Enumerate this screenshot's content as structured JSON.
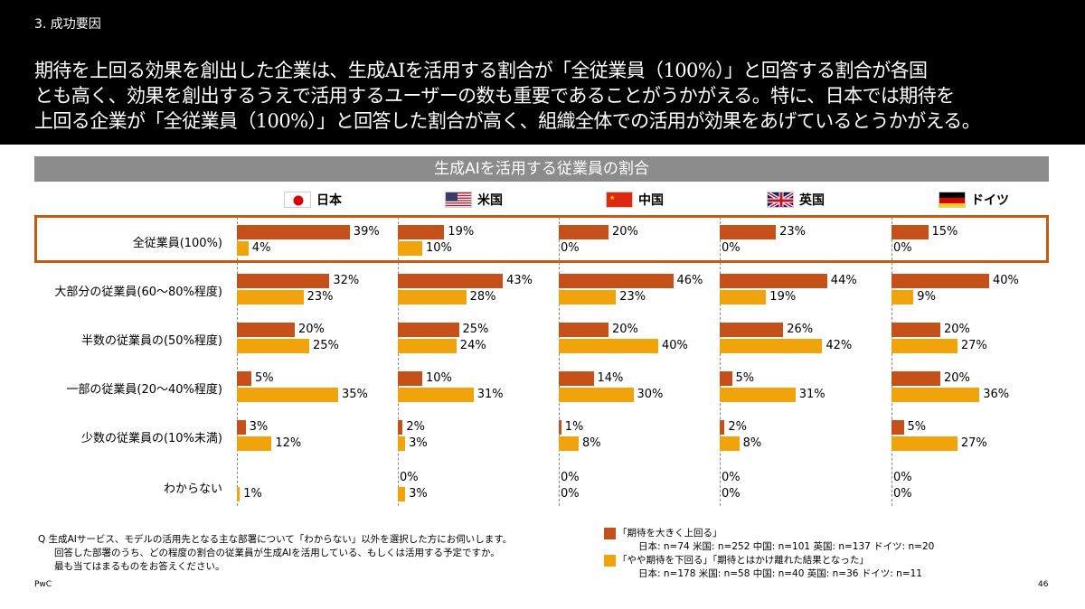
{
  "section": "3. 成功要因",
  "headline": [
    "期待を上回る効果を創出した企業は、生成AIを活用する割合が「全従業員（100%）」と回答する割合が各国",
    "とも高く、効果を創出するうえで活用するユーザーの数も重要であることがうかがえる。特に、日本では期待を",
    "上回る企業が「全従業員（100%）」と回答した割合が高く、組織全体での活用が効果をあげているとうかがえる。"
  ],
  "chart_data": {
    "type": "bar",
    "orientation": "horizontal",
    "title": "生成AIを活用する従業員の割合",
    "categories": [
      "全従業員(100%)",
      "大部分の従業員(60～80%程度)",
      "半数の従業員の(50%程度)",
      "一部の従業員(20～40%程度)",
      "少数の従業員の(10%未満)",
      "わからない"
    ],
    "unit": "%",
    "panels": [
      {
        "country": "日本",
        "flag": "japan-flag",
        "series": [
          {
            "name": "「期待を大きく上回る」",
            "values": [
              39,
              32,
              20,
              5,
              3,
              null
            ]
          },
          {
            "name": "「やや期待を下回る」「期待とはかけ離れた結果となった」",
            "values": [
              4,
              23,
              25,
              35,
              12,
              1
            ]
          }
        ]
      },
      {
        "country": "米国",
        "flag": "us-flag",
        "series": [
          {
            "name": "「期待を大きく上回る」",
            "values": [
              19,
              43,
              25,
              10,
              2,
              0
            ]
          },
          {
            "name": "「やや期待を下回る」「期待とはかけ離れた結果となった」",
            "values": [
              10,
              28,
              24,
              31,
              3,
              3
            ]
          }
        ]
      },
      {
        "country": "中国",
        "flag": "china-flag",
        "series": [
          {
            "name": "「期待を大きく上回る」",
            "values": [
              20,
              46,
              20,
              14,
              1,
              0
            ]
          },
          {
            "name": "「やや期待を下回る」「期待とはかけ離れた結果となった」",
            "values": [
              0,
              23,
              40,
              30,
              8,
              0
            ]
          }
        ]
      },
      {
        "country": "英国",
        "flag": "uk-flag",
        "series": [
          {
            "name": "「期待を大きく上回る」",
            "values": [
              23,
              44,
              26,
              5,
              2,
              0
            ]
          },
          {
            "name": "「やや期待を下回る」「期待とはかけ離れた結果となった」",
            "values": [
              0,
              19,
              42,
              31,
              8,
              0
            ]
          }
        ]
      },
      {
        "country": "ドイツ",
        "flag": "germany-flag",
        "series": [
          {
            "name": "「期待を大きく上回る」",
            "values": [
              15,
              40,
              20,
              20,
              5,
              0
            ]
          },
          {
            "name": "「やや期待を下回る」「期待とはかけ離れた結果となった」",
            "values": [
              0,
              9,
              27,
              36,
              27,
              0
            ]
          }
        ]
      }
    ],
    "colors": {
      "above": "#c5501a",
      "below": "#f0a30a",
      "highlight": "#c55a11"
    },
    "highlighted_category": "全従業員(100%)",
    "legend": [
      {
        "label": "「期待を大きく上回る」",
        "n": "日本: n=74 米国: n=252 中国: n=101 英国: n=137 ドイツ: n=20"
      },
      {
        "label": "「やや期待を下回る」「期待とはかけ離れた結果となった」",
        "n": "日本: n=178 米国: n=58 中国: n=40 英国: n=36 ドイツ: n=11"
      }
    ],
    "legend_placement": "bottom-right"
  },
  "question": [
    "Q 生成AIサービス、モデルの活用先となる主な部署について「わからない」以外を選択した方にお伺いします。",
    "回答した部署のうち、どの程度の割合の従業員が生成AIを活用している、もしくは活用する予定ですか。",
    "最も当てはまるものをお答えください。"
  ],
  "footer": {
    "brand": "PwC",
    "page": "46"
  }
}
